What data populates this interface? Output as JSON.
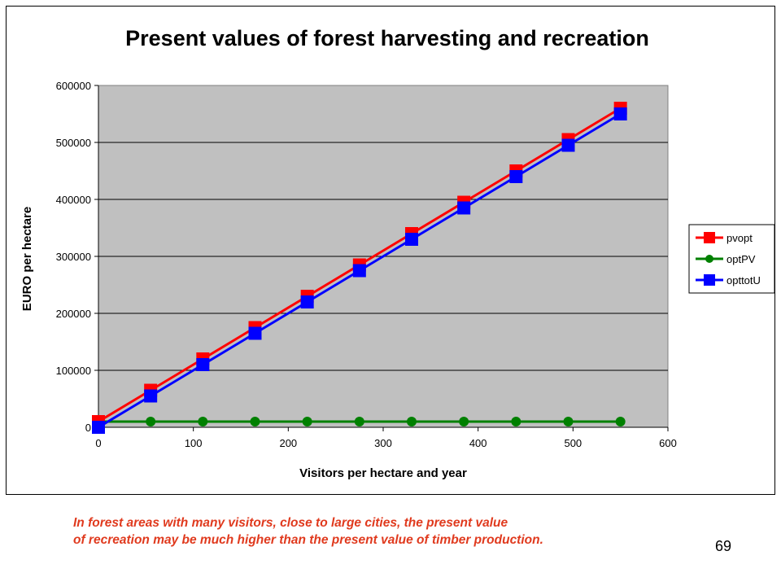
{
  "chart_data": {
    "type": "line",
    "title": "Present values of forest harvesting and recreation",
    "xlabel": "Visitors per hectare and year",
    "ylabel": "EURO per hectare",
    "xlim": [
      0,
      600
    ],
    "ylim": [
      0,
      600000
    ],
    "x_ticks": [
      "0",
      "100",
      "200",
      "300",
      "400",
      "500",
      "600"
    ],
    "y_ticks": [
      "0",
      "100000",
      "200000",
      "300000",
      "400000",
      "500000",
      "600000"
    ],
    "grid": "horizontal",
    "legend_position": "right",
    "plot_background": "#c0c0c0",
    "x": [
      0,
      55,
      110,
      165,
      220,
      275,
      330,
      385,
      440,
      495,
      550
    ],
    "series": [
      {
        "name": "pvopt",
        "color": "#ff0000",
        "marker": "square",
        "values": [
          10000,
          65000,
          120000,
          175000,
          230000,
          285000,
          340000,
          395000,
          450000,
          505000,
          560000
        ]
      },
      {
        "name": "optPV",
        "color": "#008000",
        "marker": "circle",
        "values": [
          10000,
          10000,
          10000,
          10000,
          10000,
          10000,
          10000,
          10000,
          10000,
          10000,
          10000
        ]
      },
      {
        "name": "opttotU",
        "color": "#0000ff",
        "marker": "square",
        "values": [
          0,
          55000,
          110000,
          165000,
          220000,
          275000,
          330000,
          385000,
          440000,
          495000,
          550000
        ]
      }
    ]
  },
  "caption": {
    "line1": "In forest areas with many visitors, close to large cities, the present value",
    "line2": "of recreation may be much higher than the present value of timber production."
  },
  "slide_number": "69"
}
